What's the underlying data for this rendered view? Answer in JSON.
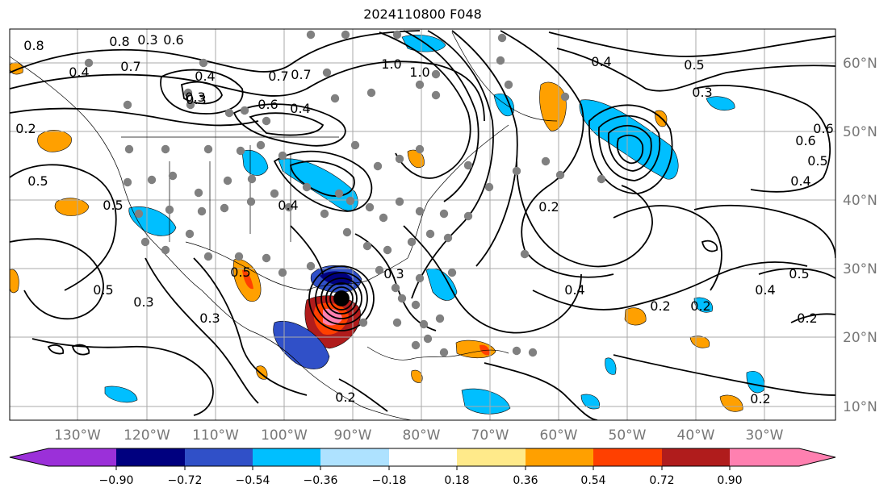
{
  "title": "2024110800 F048",
  "lat_labels": [
    "60°N",
    "50°N",
    "40°N",
    "30°N",
    "20°N",
    "10°N"
  ],
  "lon_labels": [
    "130°W",
    "120°W",
    "110°W",
    "100°W",
    "90°W",
    "80°W",
    "70°W",
    "60°W",
    "50°W",
    "40°W",
    "30°W"
  ],
  "contour_labels": [
    "0.8",
    "0.8",
    "0.6",
    "0.7",
    "0.4",
    "0.4",
    "0.7",
    "0.5",
    "0.4",
    "0.3",
    "0.6",
    "0.5",
    "0.3",
    "0.5",
    "0.4",
    "0.6",
    "0.5",
    "0.4",
    "0.2",
    "0.3",
    "0.5",
    "0.4",
    "0.3",
    "0.2",
    "0.2",
    "0.2",
    "0.3",
    "0.2",
    "0.4",
    "0.5",
    "0.3",
    "0.6",
    "0.5",
    "0.2",
    "0.4",
    "0.2",
    "1.0",
    "1.0",
    "0.7",
    "0.3"
  ],
  "colorbar": {
    "ticks": [
      "−0.90",
      "−0.72",
      "−0.54",
      "−0.36",
      "−0.18",
      "0.18",
      "0.36",
      "0.54",
      "0.72",
      "0.90"
    ],
    "colors": [
      "#9b30d9",
      "#00007f",
      "#3050c8",
      "#00bfff",
      "#aee2ff",
      "#ffffff",
      "#ffea8a",
      "#ffa000",
      "#ff4000",
      "#b01c1c",
      "#ff80b0",
      "#ff80b0"
    ]
  },
  "colors": {
    "contour": "#000000",
    "grid": "#aaaaaa",
    "station_dot": "#808080",
    "pos_fill_light": "#ffa000",
    "pos_fill_dark": "#ff4000",
    "neg_fill_light": "#00bfff",
    "neg_fill_dark": "#3050c8"
  }
}
